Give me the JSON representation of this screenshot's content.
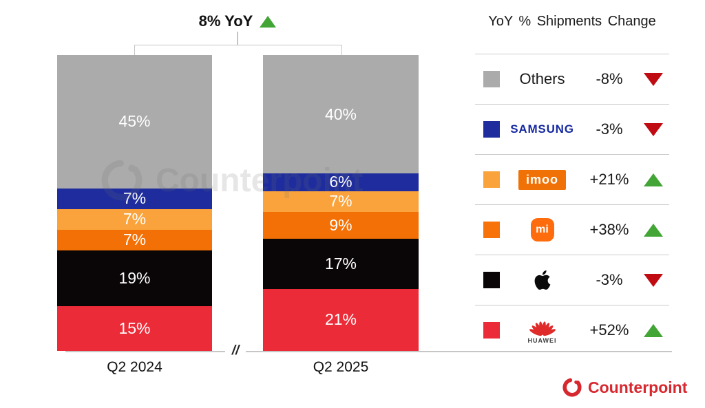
{
  "header": {
    "title": "8% YoY",
    "trend": "up"
  },
  "chart_data": {
    "type": "bar",
    "stacked": true,
    "value_unit": "%",
    "title": "8% YoY",
    "categories": [
      "Q2 2024",
      "Q2 2025"
    ],
    "series": [
      {
        "name": "Others",
        "color": "#ABABAB",
        "values": [
          45,
          40
        ]
      },
      {
        "name": "Samsung",
        "color": "#1E2C9E",
        "values": [
          7,
          6
        ]
      },
      {
        "name": "imoo",
        "color": "#FAA33C",
        "values": [
          7,
          7
        ]
      },
      {
        "name": "Xiaomi",
        "color": "#F27005",
        "values": [
          7,
          9
        ]
      },
      {
        "name": "Apple",
        "color": "#0A0507",
        "values": [
          19,
          17
        ]
      },
      {
        "name": "Huawei",
        "color": "#EC2B38",
        "values": [
          15,
          21
        ]
      }
    ],
    "ylim": [
      0,
      100
    ],
    "axis_break_symbol": "//",
    "legend_position": "right",
    "grid": false
  },
  "legend": {
    "header": "YoY % Shipments Change",
    "rows": [
      {
        "brand": "Others",
        "logo_text": "Others",
        "change": "-8%",
        "direction": "down",
        "swatch": "#ABABAB"
      },
      {
        "brand": "Samsung",
        "logo_text": "SAMSUNG",
        "change": "-3%",
        "direction": "down",
        "swatch": "#1E2C9E"
      },
      {
        "brand": "imoo",
        "logo_text": "imoo",
        "change": "+21%",
        "direction": "up",
        "swatch": "#FAA33C"
      },
      {
        "brand": "Xiaomi",
        "logo_text": "mi",
        "change": "+38%",
        "direction": "up",
        "swatch": "#F77208"
      },
      {
        "brand": "Apple",
        "logo_text": "",
        "change": "-3%",
        "direction": "down",
        "swatch": "#0A0507"
      },
      {
        "brand": "Huawei",
        "logo_text": "HUAWEI",
        "change": "+52%",
        "direction": "up",
        "swatch": "#EC2B38"
      }
    ]
  },
  "watermark": {
    "text": "Counterpoint"
  },
  "footer": {
    "brand": "Counterpoint"
  },
  "colors": {
    "up_green": "#43A536",
    "down_red": "#C00B12",
    "samsung_blue": "#1428A0",
    "imoo_orange": "#F07206",
    "mi_orange": "#FF6C0D",
    "huawei_red": "#E02B2B",
    "counterpoint_red": "#D7282F",
    "axis_gray": "#C6C6C6"
  }
}
